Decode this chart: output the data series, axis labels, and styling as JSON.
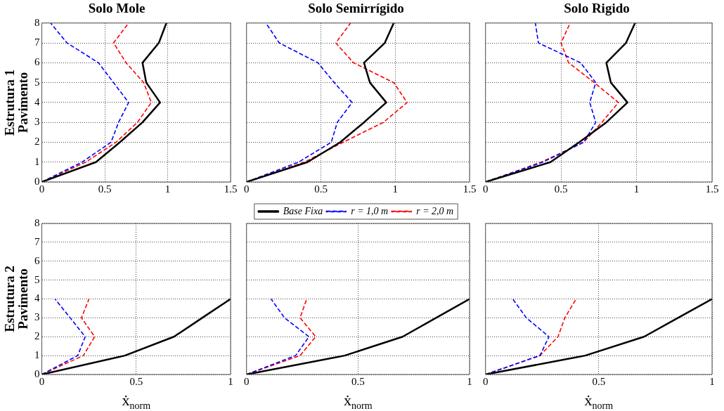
{
  "chart_data": [
    {
      "type": "line",
      "title": "Solo Mole",
      "ylabel": "Estrutura 1\nPavimento",
      "xlim": [
        0,
        1.5
      ],
      "xticks": [
        0,
        0.5,
        1,
        1.5
      ],
      "ylim": [
        0,
        8
      ],
      "yticks": [
        0,
        1,
        2,
        3,
        4,
        5,
        6,
        7,
        8
      ],
      "grid": true,
      "legend": false,
      "marker": "none",
      "series": [
        {
          "color": "#000000",
          "line_style": "solid",
          "x": [
            0,
            0.43,
            0.62,
            0.8,
            0.94,
            0.83,
            0.8,
            0.93,
            0.99
          ],
          "values": [
            0,
            1,
            2,
            3,
            4,
            5,
            6,
            7,
            8
          ]
        },
        {
          "color": "#0000ff",
          "line_style": "dashed",
          "x": [
            0,
            0.32,
            0.55,
            0.61,
            0.69,
            0.57,
            0.45,
            0.2,
            0.07
          ],
          "values": [
            0,
            1,
            2,
            3,
            4,
            5,
            6,
            7,
            8
          ]
        },
        {
          "color": "#ff0000",
          "line_style": "dashed",
          "x": [
            0,
            0.35,
            0.59,
            0.76,
            0.87,
            0.81,
            0.67,
            0.57,
            0.69
          ],
          "values": [
            0,
            1,
            2,
            3,
            4,
            5,
            6,
            7,
            8
          ]
        }
      ]
    },
    {
      "type": "line",
      "title": "Solo Semirrígido",
      "xlim": [
        0,
        1.5
      ],
      "xticks": [
        0,
        0.5,
        1,
        1.5
      ],
      "ylim": [
        0,
        8
      ],
      "yticks": [
        0,
        1,
        2,
        3,
        4,
        5,
        6,
        7,
        8
      ],
      "grid": true,
      "legend": false,
      "marker": "none",
      "tick_labels": "x",
      "series": [
        {
          "color": "#000000",
          "line_style": "solid",
          "x": [
            0,
            0.41,
            0.63,
            0.79,
            0.94,
            0.83,
            0.79,
            0.93,
            0.99
          ],
          "values": [
            0,
            1,
            2,
            3,
            4,
            5,
            6,
            7,
            8
          ]
        },
        {
          "color": "#0000ff",
          "line_style": "dashed",
          "x": [
            0,
            0.35,
            0.57,
            0.61,
            0.71,
            0.59,
            0.48,
            0.22,
            0.13
          ],
          "values": [
            0,
            1,
            2,
            3,
            4,
            5,
            6,
            7,
            8
          ]
        },
        {
          "color": "#ff0000",
          "line_style": "dashed",
          "x": [
            0,
            0.39,
            0.65,
            0.92,
            1.08,
            0.99,
            0.72,
            0.6,
            0.7
          ],
          "values": [
            0,
            1,
            2,
            3,
            4,
            5,
            6,
            7,
            8
          ]
        }
      ]
    },
    {
      "type": "line",
      "title": "Solo Rigido",
      "xlim": [
        0,
        1.5
      ],
      "xticks": [
        0,
        0.5,
        1,
        1.5
      ],
      "ylim": [
        0,
        8
      ],
      "yticks": [
        0,
        1,
        2,
        3,
        4,
        5,
        6,
        7,
        8
      ],
      "grid": true,
      "legend": false,
      "marker": "none",
      "tick_labels": "x",
      "series": [
        {
          "color": "#000000",
          "line_style": "solid",
          "x": [
            0,
            0.43,
            0.62,
            0.8,
            0.94,
            0.83,
            0.8,
            0.93,
            0.99
          ],
          "values": [
            0,
            1,
            2,
            3,
            4,
            5,
            6,
            7,
            8
          ]
        },
        {
          "color": "#0000ff",
          "line_style": "dashed",
          "x": [
            0,
            0.38,
            0.65,
            0.73,
            0.69,
            0.73,
            0.63,
            0.35,
            0.33
          ],
          "values": [
            0,
            1,
            2,
            3,
            4,
            5,
            6,
            7,
            8
          ]
        },
        {
          "color": "#ff0000",
          "line_style": "dashed",
          "x": [
            0,
            0.37,
            0.65,
            0.77,
            0.88,
            0.72,
            0.55,
            0.5,
            0.56
          ],
          "values": [
            0,
            1,
            2,
            3,
            4,
            5,
            6,
            7,
            8
          ]
        }
      ]
    },
    {
      "type": "line",
      "ylabel": "Estrutura 2\nPavimento",
      "xlabel": "ẋ$_{norm}$",
      "xlim": [
        0,
        1
      ],
      "xticks": [
        0,
        0.5,
        1
      ],
      "ylim": [
        0,
        8
      ],
      "yticks": [
        0,
        1,
        2,
        3,
        4,
        5,
        6,
        7,
        8
      ],
      "grid": true,
      "legend": false,
      "marker": "none",
      "series": [
        {
          "color": "#000000",
          "line_style": "solid",
          "x": [
            0,
            0.44,
            0.7,
            0.85,
            1
          ],
          "values": [
            0,
            1,
            2,
            3,
            4
          ]
        },
        {
          "color": "#0000ff",
          "line_style": "dashed",
          "x": [
            0,
            0.19,
            0.23,
            0.15,
            0.07
          ],
          "values": [
            0,
            1,
            2,
            3,
            4
          ]
        },
        {
          "color": "#ff0000",
          "line_style": "dashed",
          "x": [
            0,
            0.22,
            0.28,
            0.21,
            0.25
          ],
          "values": [
            0,
            1,
            2,
            3,
            4
          ]
        }
      ]
    },
    {
      "type": "line",
      "xlabel": "ẋ$_{norm}$",
      "xlim": [
        0,
        1
      ],
      "xticks": [
        0,
        0.5,
        1
      ],
      "ylim": [
        0,
        8
      ],
      "yticks": [
        0,
        1,
        2,
        3,
        4,
        5,
        6,
        7,
        8
      ],
      "grid": true,
      "legend": "top",
      "marker": "none",
      "tick_labels": "x",
      "series": [
        {
          "name": "Base Fixa",
          "color": "#000000",
          "line_style": "solid",
          "x": [
            0,
            0.44,
            0.7,
            0.85,
            1
          ],
          "values": [
            0,
            1,
            2,
            3,
            4
          ]
        },
        {
          "name": "r = 1,0 m",
          "color": "#0000ff",
          "line_style": "dashed",
          "x": [
            0,
            0.22,
            0.28,
            0.17,
            0.11
          ],
          "values": [
            0,
            1,
            2,
            3,
            4
          ]
        },
        {
          "name": "r = 2,0 m",
          "color": "#ff0000",
          "line_style": "dashed",
          "x": [
            0,
            0.24,
            0.31,
            0.24,
            0.27
          ],
          "values": [
            0,
            1,
            2,
            3,
            4
          ]
        }
      ]
    },
    {
      "type": "line",
      "xlabel": "ẋ$_{norm}$",
      "xlim": [
        0,
        1
      ],
      "xticks": [
        0,
        0.5,
        1
      ],
      "ylim": [
        0,
        8
      ],
      "yticks": [
        0,
        1,
        2,
        3,
        4,
        5,
        6,
        7,
        8
      ],
      "grid": true,
      "legend": false,
      "marker": "none",
      "tick_labels": "x",
      "series": [
        {
          "color": "#000000",
          "line_style": "solid",
          "x": [
            0,
            0.44,
            0.7,
            0.85,
            1
          ],
          "values": [
            0,
            1,
            2,
            3,
            4
          ]
        },
        {
          "color": "#0000ff",
          "line_style": "dashed",
          "x": [
            0,
            0.24,
            0.28,
            0.18,
            0.12
          ],
          "values": [
            0,
            1,
            2,
            3,
            4
          ]
        },
        {
          "color": "#ff0000",
          "line_style": "dashed",
          "x": [
            0,
            0.24,
            0.32,
            0.35,
            0.4
          ],
          "values": [
            0,
            1,
            2,
            3,
            4
          ]
        }
      ]
    }
  ]
}
